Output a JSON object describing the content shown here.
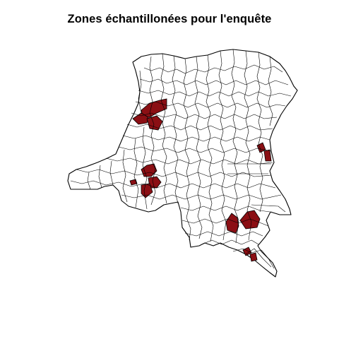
{
  "figure": {
    "title": "Zones échantillonées pour l'enquête",
    "map_subject": "Democratic Republic of the Congo health zones",
    "legend": null
  },
  "colors": {
    "background": "#ffffff",
    "boundary_stroke": "#000000",
    "zone_fill_default": "#ffffff",
    "zone_fill_sampled": "#8b0f14"
  },
  "sampled_zones": [
    {
      "id": "sz-1",
      "region": "north-west (Equateur)"
    },
    {
      "id": "sz-2",
      "region": "north-west (Equateur)"
    },
    {
      "id": "sz-3",
      "region": "north-west (Equateur)"
    },
    {
      "id": "sz-4",
      "region": "west (Kwilu)"
    },
    {
      "id": "sz-5",
      "region": "west (Kwilu)"
    },
    {
      "id": "sz-6",
      "region": "west (Kwilu)"
    },
    {
      "id": "sz-7",
      "region": "west (Kwilu)"
    },
    {
      "id": "sz-8",
      "region": "east (Sud-Kivu)"
    },
    {
      "id": "sz-9",
      "region": "east (Sud-Kivu)"
    },
    {
      "id": "sz-10",
      "region": "south-east (Haut-Lomami)"
    },
    {
      "id": "sz-11",
      "region": "south-east (Haut-Lomami)"
    },
    {
      "id": "sz-12",
      "region": "south-east (Haut-Katanga)"
    },
    {
      "id": "sz-13",
      "region": "south-east (Haut-Katanga)"
    }
  ]
}
